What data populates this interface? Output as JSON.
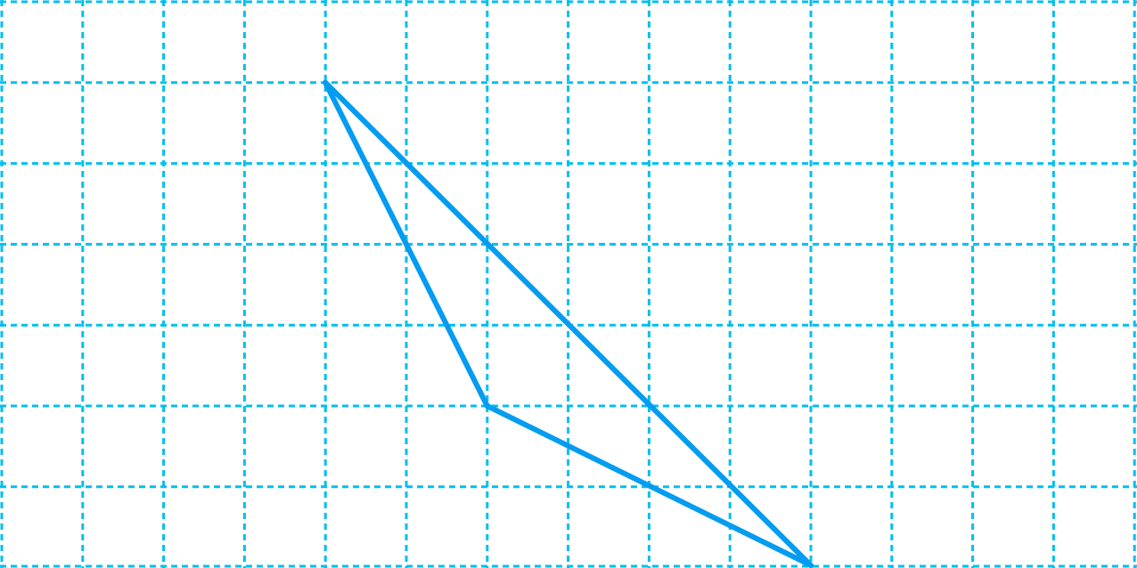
{
  "grid": {
    "columns": 14,
    "rows": 7,
    "line_color": "#00bfef",
    "line_style": "dashed"
  },
  "shape": {
    "type": "triangle",
    "stroke_color": "#049cf1",
    "vertices": [
      {
        "name": "top",
        "col": 4,
        "row": 1
      },
      {
        "name": "middle",
        "col": 6,
        "row": 5
      },
      {
        "name": "bottom",
        "col": 10,
        "row": 7
      }
    ]
  }
}
